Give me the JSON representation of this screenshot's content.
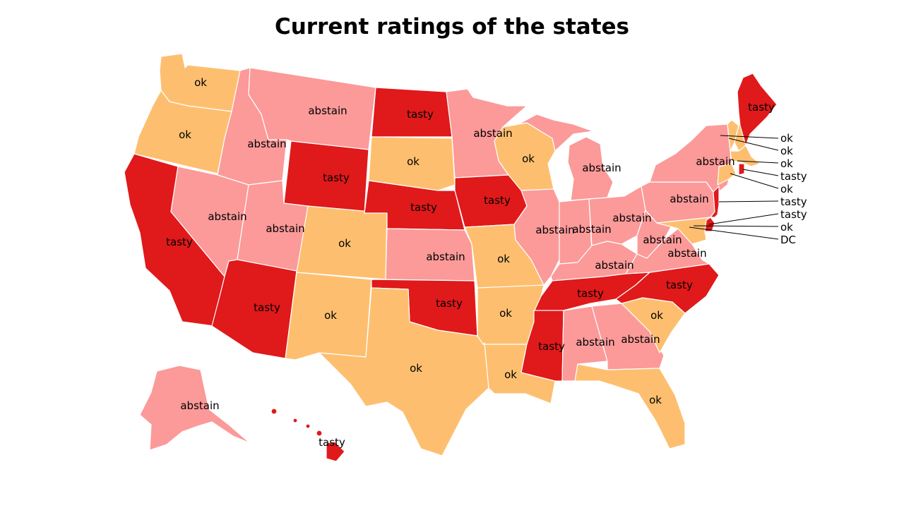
{
  "title": "Current ratings of the states",
  "colors": {
    "tasty": "#e0191b",
    "ok": "#fdbf6f",
    "abstain": "#fb9a99"
  },
  "states": {
    "WA": {
      "rating": "ok",
      "label": "ok"
    },
    "OR": {
      "rating": "ok",
      "label": "ok"
    },
    "CA": {
      "rating": "tasty",
      "label": "tasty"
    },
    "ID": {
      "rating": "abstain",
      "label": "abstain"
    },
    "NV": {
      "rating": "abstain",
      "label": "abstain"
    },
    "MT": {
      "rating": "abstain",
      "label": "abstain"
    },
    "WY": {
      "rating": "tasty",
      "label": "tasty"
    },
    "UT": {
      "rating": "abstain",
      "label": "abstain"
    },
    "AZ": {
      "rating": "tasty",
      "label": "tasty"
    },
    "CO": {
      "rating": "ok",
      "label": "ok"
    },
    "NM": {
      "rating": "ok",
      "label": "ok"
    },
    "ND": {
      "rating": "tasty",
      "label": "tasty"
    },
    "SD": {
      "rating": "ok",
      "label": "ok"
    },
    "NE": {
      "rating": "tasty",
      "label": "tasty"
    },
    "KS": {
      "rating": "abstain",
      "label": "abstain"
    },
    "OK": {
      "rating": "tasty",
      "label": "tasty"
    },
    "TX": {
      "rating": "ok",
      "label": "ok"
    },
    "MN": {
      "rating": "abstain",
      "label": "abstain"
    },
    "IA": {
      "rating": "tasty",
      "label": "tasty"
    },
    "MO": {
      "rating": "ok",
      "label": "ok"
    },
    "AR": {
      "rating": "ok",
      "label": "ok"
    },
    "LA": {
      "rating": "ok",
      "label": "ok"
    },
    "WI": {
      "rating": "ok",
      "label": "ok"
    },
    "IL": {
      "rating": "abstain",
      "label": "abstain"
    },
    "MI": {
      "rating": "abstain",
      "label": "abstain"
    },
    "IN": {
      "rating": "abstain",
      "label": "abstain"
    },
    "OH": {
      "rating": "abstain",
      "label": "abstain"
    },
    "KY": {
      "rating": "abstain",
      "label": "abstain"
    },
    "TN": {
      "rating": "tasty",
      "label": "tasty"
    },
    "MS": {
      "rating": "tasty",
      "label": "tasty"
    },
    "AL": {
      "rating": "abstain",
      "label": "abstain"
    },
    "GA": {
      "rating": "abstain",
      "label": "abstain"
    },
    "FL": {
      "rating": "ok",
      "label": "ok"
    },
    "SC": {
      "rating": "ok",
      "label": "ok"
    },
    "NC": {
      "rating": "tasty",
      "label": "tasty"
    },
    "VA": {
      "rating": "abstain",
      "label": "abstain"
    },
    "WV": {
      "rating": "abstain",
      "label": "abstain"
    },
    "PA": {
      "rating": "abstain",
      "label": "abstain"
    },
    "NY": {
      "rating": "abstain",
      "label": "abstain"
    },
    "ME": {
      "rating": "tasty",
      "label": "tasty"
    },
    "NJ": {
      "rating": "tasty",
      "label": "tasty"
    },
    "MD": {
      "rating": "ok",
      "label": "ok"
    },
    "DE": {
      "rating": "tasty",
      "label": "tasty"
    },
    "VT": {
      "rating": "ok",
      "label": "ok"
    },
    "NH": {
      "rating": "ok",
      "label": "ok"
    },
    "MA": {
      "rating": "ok",
      "label": "ok"
    },
    "RI": {
      "rating": "tasty",
      "label": "tasty"
    },
    "CT": {
      "rating": "ok",
      "label": "ok"
    },
    "DC": {
      "rating": "ok",
      "label": "DC"
    },
    "AK": {
      "rating": "abstain",
      "label": "abstain"
    },
    "HI": {
      "rating": "tasty",
      "label": "tasty"
    }
  },
  "callouts": {
    "VT": "ok",
    "NH": "ok",
    "MA": "ok",
    "RI": "tasty",
    "CT": "ok",
    "NJ": "tasty",
    "DE": "tasty",
    "MD": "ok",
    "DC": "DC"
  }
}
